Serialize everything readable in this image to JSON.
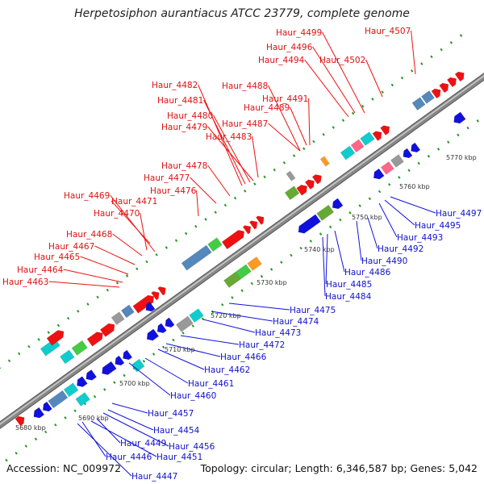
{
  "title": "Herpetosiphon aurantiacus ATCC 23779, complete genome",
  "accession_text": "Accession: NC_009972",
  "summary_text": "Topology: circular; Length: 6,346,587 bp; Genes: 5,042",
  "colors": {
    "forward": "#ee1111",
    "reverse": "#1111dd",
    "backbone": "#888888",
    "tick": "#229922",
    "other_cds": [
      "#5588bb",
      "#44cc44",
      "#11cccc",
      "#ff6688",
      "#999999",
      "#ff9922",
      "#66aa33"
    ]
  },
  "chart_data": {
    "type": "genome-map",
    "ruler_labels": [
      "5680 kbp",
      "5690 kbp",
      "5700 kbp",
      "5710 kbp",
      "5720 kbp",
      "5730 kbp",
      "5740 kbp",
      "5750 kbp",
      "5760 kbp",
      "5770 kbp"
    ],
    "forward_genes": [
      "Haur_4463",
      "Haur_4464",
      "Haur_4465",
      "Haur_4467",
      "Haur_4468",
      "Haur_4470",
      "Haur_4471",
      "Haur_4469",
      "Haur_4476",
      "Haur_4477",
      "Haur_4478",
      "Haur_4483",
      "Haur_4479",
      "Haur_4480",
      "Haur_4481",
      "Haur_4482",
      "Haur_4487",
      "Haur_4489",
      "Haur_4491",
      "Haur_4488",
      "Haur_4494",
      "Haur_4496",
      "Haur_4499",
      "Haur_4502",
      "Haur_4507"
    ],
    "reverse_genes": [
      "Haur_4447",
      "Haur_4446",
      "Haur_4451",
      "Haur_4449",
      "Haur_4456",
      "Haur_4454",
      "Haur_4457",
      "Haur_4460",
      "Haur_4461",
      "Haur_4462",
      "Haur_4466",
      "Haur_4472",
      "Haur_4473",
      "Haur_4474",
      "Haur_4475",
      "Haur_4484",
      "Haur_4485",
      "Haur_4486",
      "Haur_4490",
      "Haur_4492",
      "Haur_4493",
      "Haur_4495",
      "Haur_4497"
    ]
  }
}
